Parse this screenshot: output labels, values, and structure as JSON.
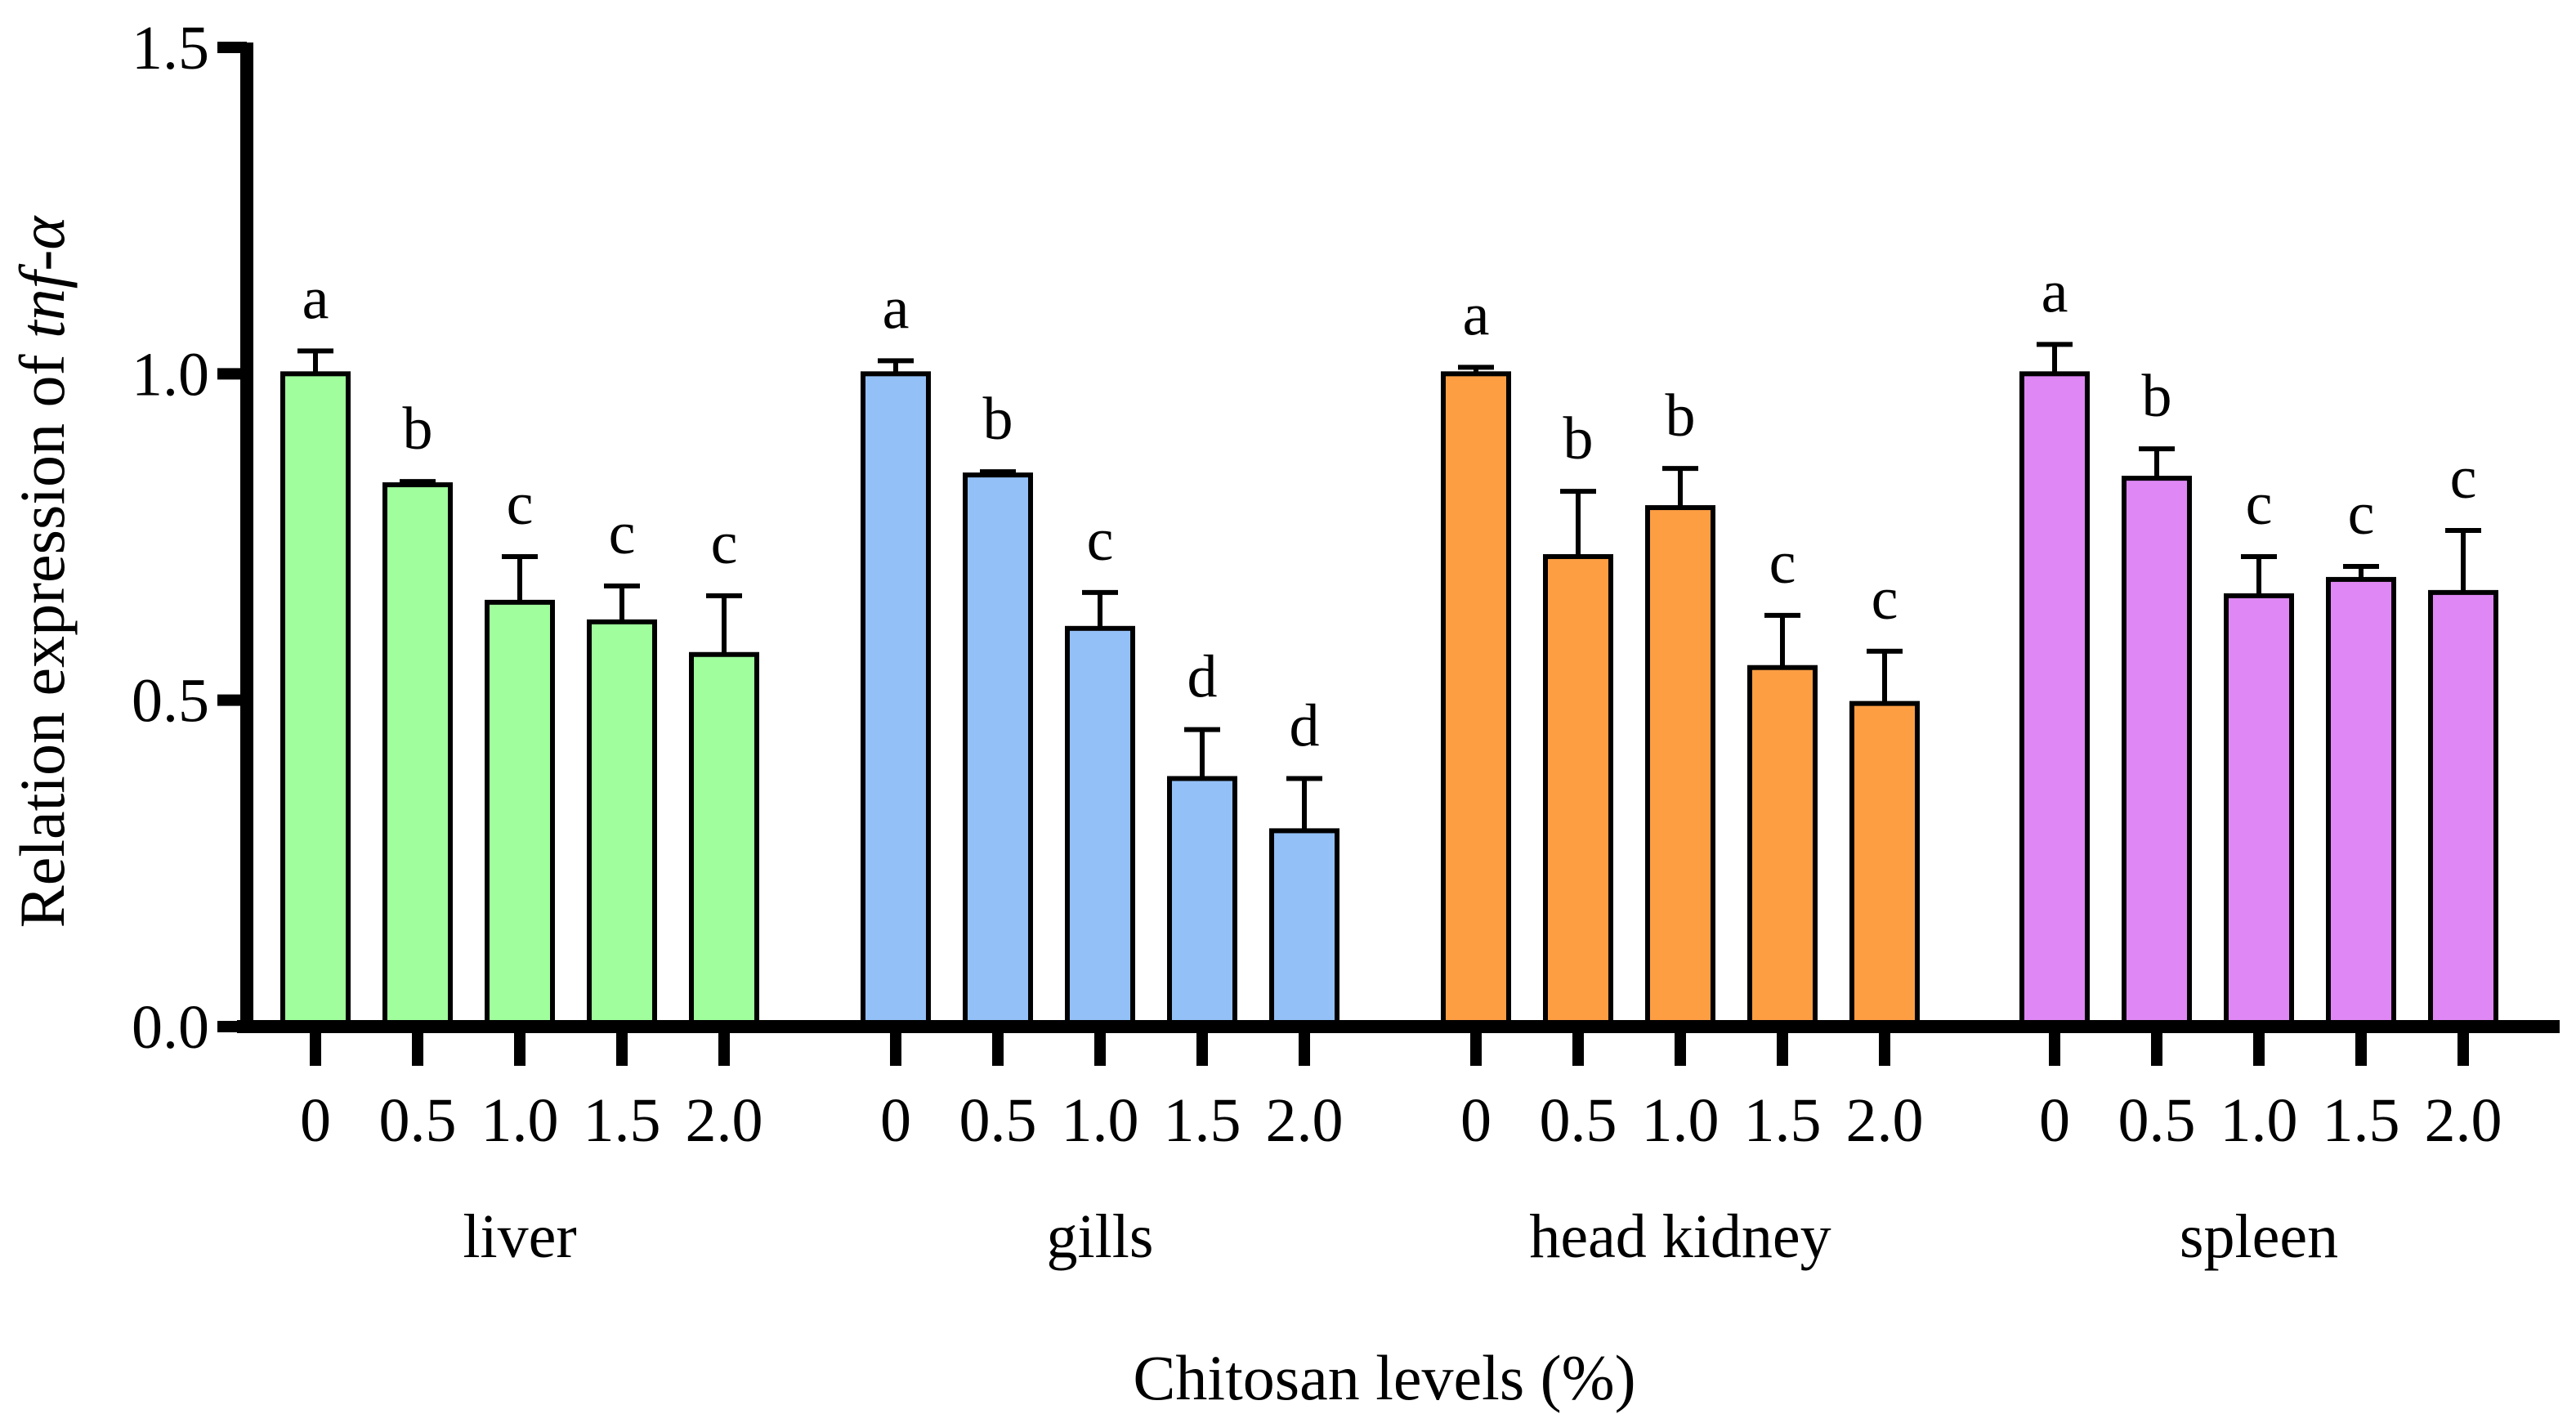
{
  "chart_data": {
    "type": "bar",
    "ylabel_prefix": "Relation expression of ",
    "ylabel_gene": "tnf-α",
    "xlabel": "Chitosan  levels  (%)",
    "ylim": [
      0,
      1.5
    ],
    "yticks": [
      "0.0",
      "0.5",
      "1.0",
      "1.5"
    ],
    "ytick_values": [
      0,
      0.5,
      1.0,
      1.5
    ],
    "categories": [
      "0",
      "0.5",
      "1.0",
      "1.5",
      "2.0"
    ],
    "groups": [
      {
        "name": "liver",
        "color": "#a0ff9c",
        "values": [
          1.0,
          0.83,
          0.65,
          0.62,
          0.57
        ],
        "errors": [
          0.035,
          0.005,
          0.07,
          0.055,
          0.09
        ],
        "letters": [
          "a",
          "b",
          "c",
          "c",
          "c"
        ]
      },
      {
        "name": "gills",
        "color": "#93c0f7",
        "values": [
          1.0,
          0.845,
          0.61,
          0.38,
          0.3
        ],
        "errors": [
          0.02,
          0.005,
          0.055,
          0.075,
          0.08
        ],
        "letters": [
          "a",
          "b",
          "c",
          "d",
          "d"
        ]
      },
      {
        "name": "head kidney",
        "color": "#fd9e43",
        "values": [
          1.0,
          0.72,
          0.795,
          0.55,
          0.495
        ],
        "errors": [
          0.01,
          0.1,
          0.06,
          0.08,
          0.08
        ],
        "letters": [
          "a",
          "b",
          "b",
          "c",
          "c"
        ]
      },
      {
        "name": "spleen",
        "color": "#df88f5",
        "values": [
          1.0,
          0.84,
          0.66,
          0.685,
          0.665
        ],
        "errors": [
          0.045,
          0.045,
          0.06,
          0.02,
          0.095
        ],
        "letters": [
          "a",
          "b",
          "c",
          "c",
          "c"
        ]
      }
    ]
  }
}
